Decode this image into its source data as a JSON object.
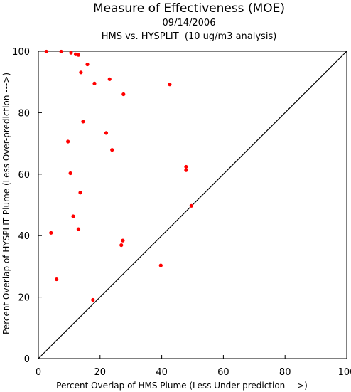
{
  "chart_data": {
    "type": "scatter",
    "title": "Measure of Effectiveness (MOE)",
    "subtitle_date": "09/14/2006",
    "subtitle_analysis": "HMS vs. HYSPLIT  (10 ug/m3 analysis)",
    "xlabel": "Percent Overlap of HMS Plume (Less Under-prediction --->)",
    "ylabel": "Percent Overlap of HYSPLIT Plume (Less Over-prediction --->)",
    "xlim": [
      0,
      100
    ],
    "ylim": [
      0,
      100
    ],
    "xticks": [
      "0",
      "20",
      "40",
      "60",
      "80",
      "100"
    ],
    "yticks": [
      "0",
      "20",
      "40",
      "60",
      "80",
      "100"
    ],
    "grid": false,
    "reference_line": "y = x",
    "marker_color": "#ff0000",
    "line_color": "#000000",
    "points": [
      {
        "x": 2.6,
        "y": 99.9
      },
      {
        "x": 7.4,
        "y": 99.9
      },
      {
        "x": 10.6,
        "y": 99.5
      },
      {
        "x": 12.1,
        "y": 99.0
      },
      {
        "x": 13.0,
        "y": 98.8
      },
      {
        "x": 15.9,
        "y": 95.7
      },
      {
        "x": 13.8,
        "y": 93.1
      },
      {
        "x": 23.1,
        "y": 90.9
      },
      {
        "x": 18.2,
        "y": 89.5
      },
      {
        "x": 42.6,
        "y": 89.2
      },
      {
        "x": 27.6,
        "y": 86.0
      },
      {
        "x": 14.5,
        "y": 77.1
      },
      {
        "x": 22.0,
        "y": 73.4
      },
      {
        "x": 9.6,
        "y": 70.6
      },
      {
        "x": 23.9,
        "y": 67.9
      },
      {
        "x": 47.9,
        "y": 62.4
      },
      {
        "x": 47.9,
        "y": 61.3
      },
      {
        "x": 10.4,
        "y": 60.3
      },
      {
        "x": 13.6,
        "y": 54.0
      },
      {
        "x": 49.6,
        "y": 49.7
      },
      {
        "x": 11.3,
        "y": 46.3
      },
      {
        "x": 13.0,
        "y": 42.1
      },
      {
        "x": 4.1,
        "y": 40.9
      },
      {
        "x": 27.4,
        "y": 38.4
      },
      {
        "x": 26.9,
        "y": 36.9
      },
      {
        "x": 39.7,
        "y": 30.3
      },
      {
        "x": 5.9,
        "y": 25.8
      },
      {
        "x": 17.7,
        "y": 19.1
      }
    ]
  }
}
